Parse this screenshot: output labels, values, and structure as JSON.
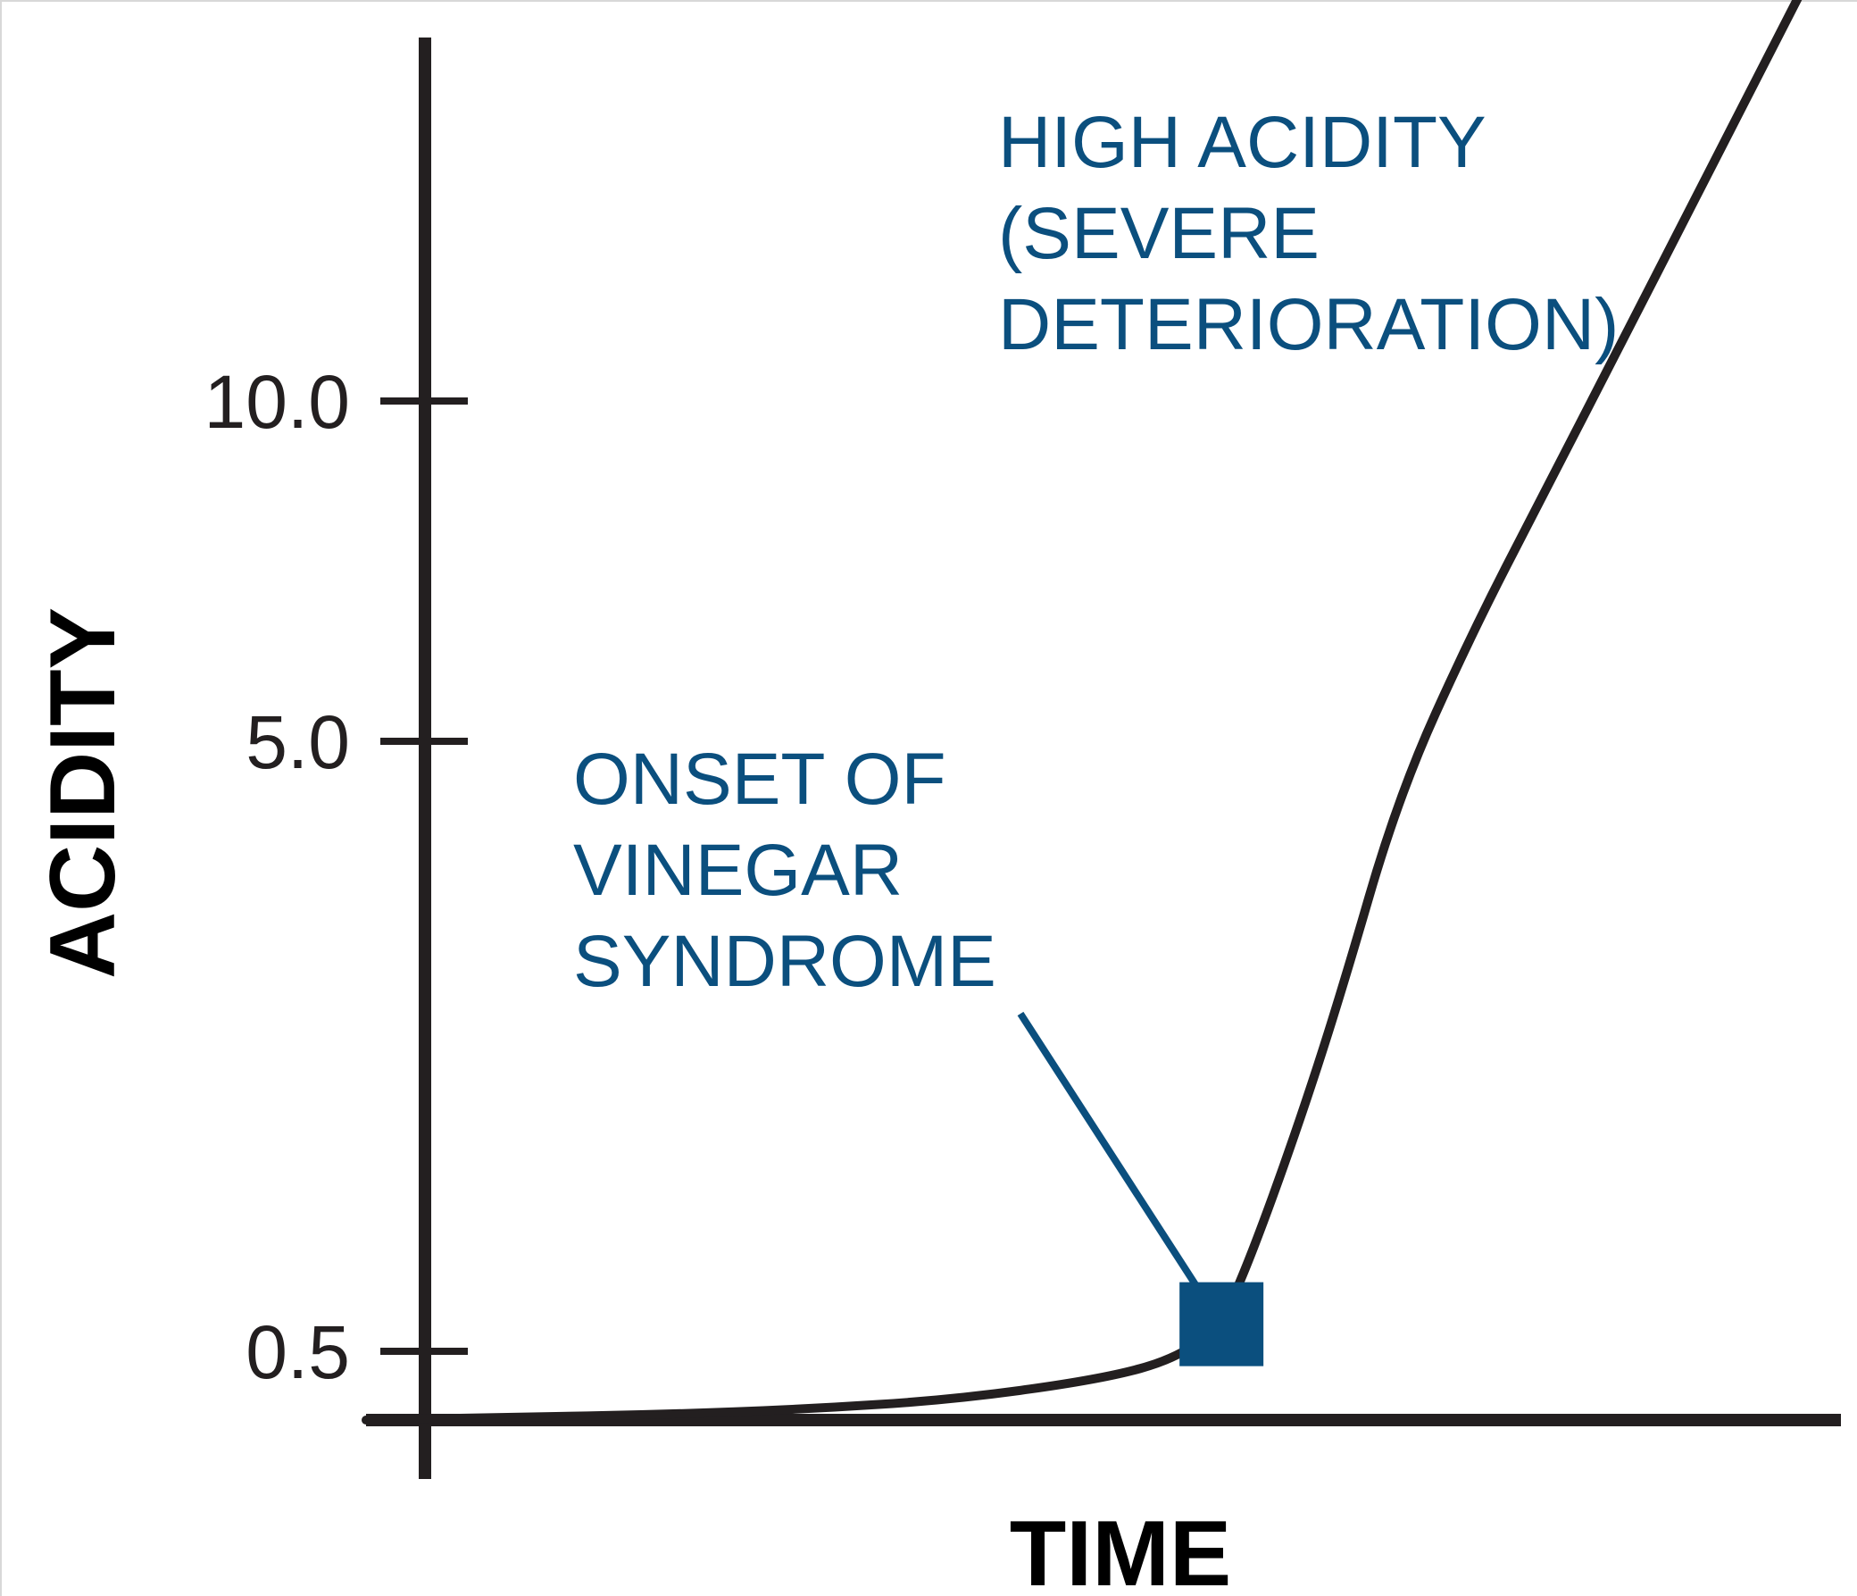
{
  "colors": {
    "axis": "#231f20",
    "curve": "#231f20",
    "accent": "#0b4f7e",
    "background": "#ffffff"
  },
  "chart_data": {
    "type": "line",
    "title": "",
    "xlabel": "TIME",
    "ylabel": "ACIDITY",
    "yticks": [
      {
        "value": 0.5,
        "label": "0.5"
      },
      {
        "value": 5.0,
        "label": "5.0"
      },
      {
        "value": 10.0,
        "label": "10.0"
      }
    ],
    "ylim": [
      -0.5,
      15.3
    ],
    "xlim": [
      0,
      100
    ],
    "x_ticks_shown": false,
    "grid": false,
    "legend": "none",
    "series": [
      {
        "x": [
          0,
          10,
          20,
          30,
          40,
          50,
          55,
          58,
          60,
          63,
          66,
          70,
          75,
          80,
          85,
          90,
          95,
          100
        ],
        "y": [
          0.0,
          0.02,
          0.04,
          0.08,
          0.15,
          0.3,
          0.45,
          0.7,
          1.2,
          2.1,
          3.1,
          4.6,
          6.6,
          8.7,
          10.8,
          12.9,
          15.0,
          17.1
        ]
      }
    ],
    "annotations": [
      {
        "id": "onset",
        "lines": [
          "ONSET OF",
          "VINEGAR",
          "SYNDROME"
        ],
        "marker": "square",
        "point": {
          "x": 58,
          "y": 0.7
        }
      },
      {
        "id": "high",
        "lines": [
          "HIGH ACIDITY",
          "(SEVERE",
          "DETERIORATION)"
        ]
      }
    ]
  }
}
